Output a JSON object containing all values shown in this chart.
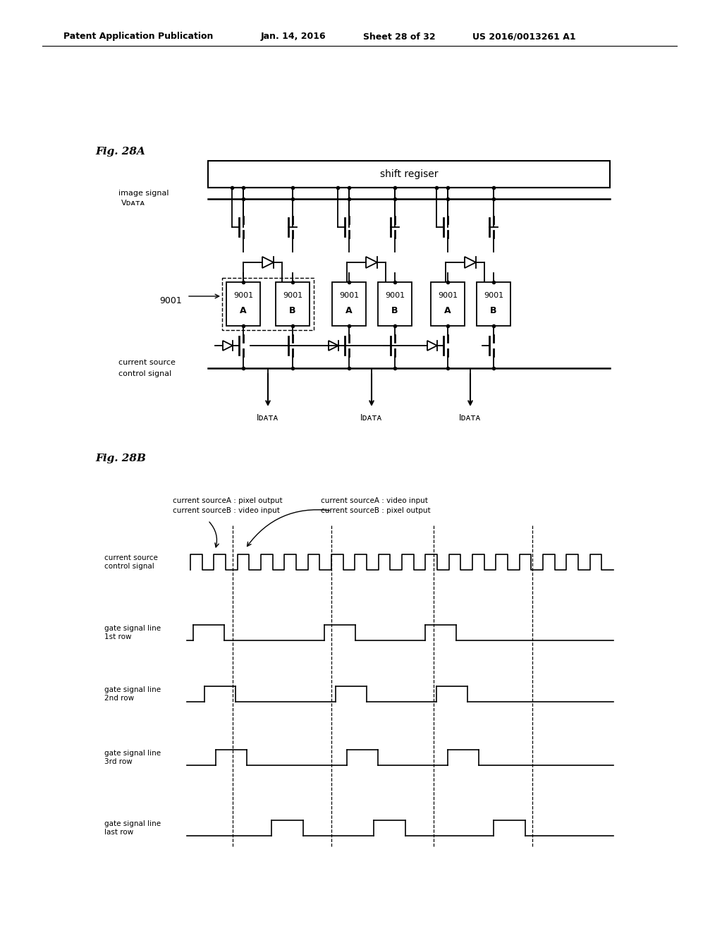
{
  "bg_color": "#ffffff",
  "header_text": "Patent Application Publication",
  "header_date": "Jan. 14, 2016",
  "header_sheet": "Sheet 28 of 32",
  "header_patent": "US 2016/0013261 A1",
  "fig28a_label": "Fig. 28A",
  "fig28b_label": "Fig. 28B",
  "shift_register_text": "shift regiser",
  "label_9001": "9001",
  "annotation_line1": "current sourceA : pixel output",
  "annotation_line2": "current sourceB : video input",
  "annotation_line3": "current sourceA : video input",
  "annotation_line4": "current sourceB : pixel output",
  "timing_labels": [
    "current source\ncontrol signal",
    "gate signal line\n1st row",
    "gate signal line\n2nd row",
    "gate signal line\n3rd row",
    "gate signal line\nlast row"
  ],
  "text_color": "#000000",
  "line_color": "#000000"
}
